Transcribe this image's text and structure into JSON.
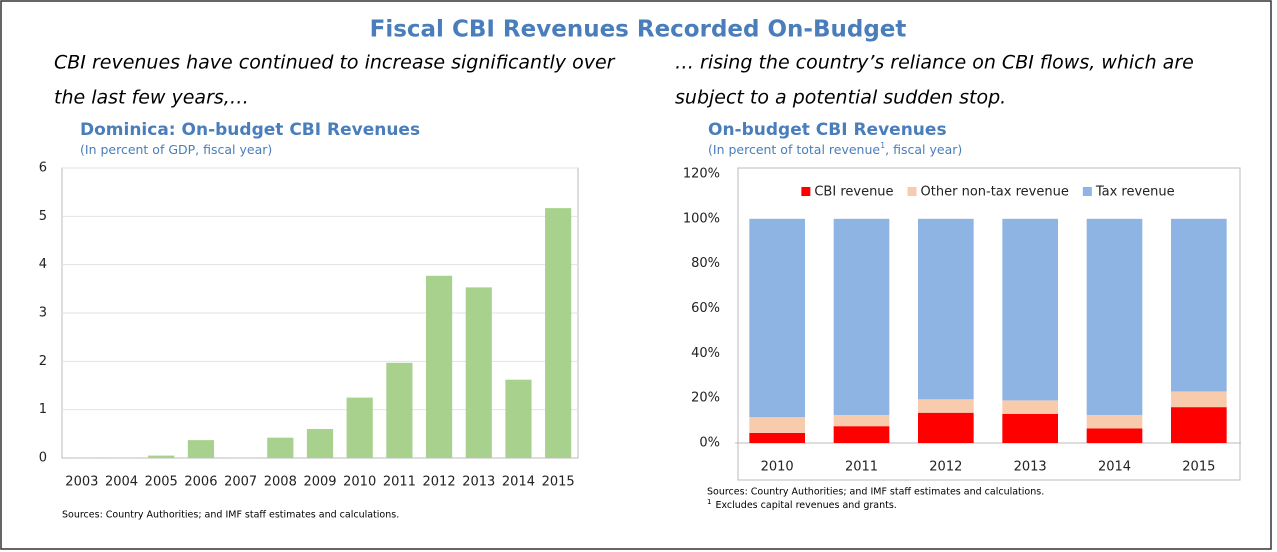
{
  "title": "Fiscal CBI Revenues Recorded On-Budget",
  "captions": [
    [
      "CBI revenues have continued to increase significantly over",
      "the last few years,…"
    ],
    [
      "… rising the country’s reliance on CBI flows, which are",
      "subject to a potential sudden stop."
    ]
  ],
  "chart_data": [
    {
      "type": "bar",
      "title": "Dominica: On-budget CBI Revenues",
      "subtitle": [
        "(In percent of GDP, fiscal year)"
      ],
      "categories": [
        "2003",
        "2004",
        "2005",
        "2006",
        "2007",
        "2008",
        "2009",
        "2010",
        "2011",
        "2012",
        "2013",
        "2014",
        "2015"
      ],
      "values": [
        0.01,
        0.01,
        0.05,
        0.37,
        0.01,
        0.42,
        0.6,
        1.25,
        1.97,
        3.77,
        3.53,
        1.62,
        5.17
      ],
      "color": "#a9d18e",
      "ylim": [
        0,
        6
      ],
      "yticks": [
        0,
        1,
        2,
        3,
        4,
        5,
        6
      ],
      "grid": true,
      "notes": [
        "Sources: Country Authorities; and IMF staff estimates and calculations."
      ]
    },
    {
      "type": "stacked_bar",
      "title": "On-budget CBI Revenues",
      "subtitle": [
        "(In percent of total revenue",
        "1",
        ", fiscal year)"
      ],
      "categories": [
        "2010",
        "2011",
        "2012",
        "2013",
        "2014",
        "2015"
      ],
      "series": [
        {
          "name": "CBI revenue",
          "color": "#ff0000",
          "values": [
            4.5,
            7.5,
            13.5,
            13,
            6.5,
            16
          ]
        },
        {
          "name": "Other non-tax revenue",
          "color": "#f8cbad",
          "values": [
            7,
            5,
            6,
            6,
            6,
            7
          ]
        },
        {
          "name": "Tax revenue",
          "color": "#8eb4e3",
          "values": [
            88.5,
            87.5,
            80.5,
            81,
            87.5,
            77
          ]
        }
      ],
      "ylim": [
        0,
        120
      ],
      "yticks": [
        {
          "value": 0,
          "label": "0%"
        },
        {
          "value": 20,
          "label": "20%"
        },
        {
          "value": 40,
          "label": "40%"
        },
        {
          "value": 60,
          "label": "60%"
        },
        {
          "value": 80,
          "label": "80%"
        },
        {
          "value": 100,
          "label": "100%"
        },
        {
          "value": 120,
          "label": "120%"
        }
      ],
      "grid": false,
      "legend": "top",
      "notes": [
        "Sources: Country Authorities; and IMF staff estimates and calculations.",
        "1",
        "Excludes capital revenues and grants."
      ]
    }
  ]
}
